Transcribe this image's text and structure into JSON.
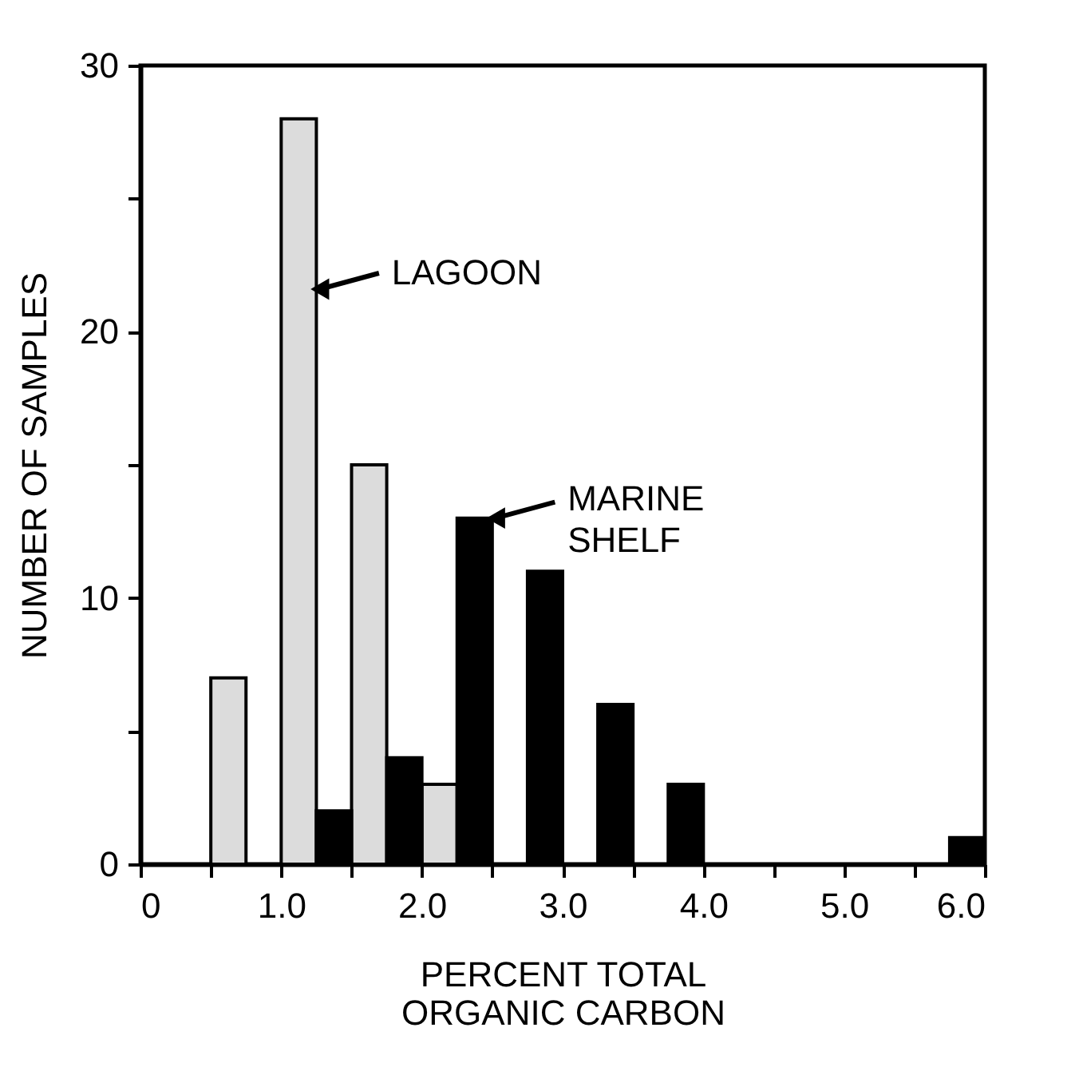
{
  "chart_data": {
    "type": "bar",
    "xlabel": "PERCENT TOTAL ORGANIC CARBON",
    "ylabel": "NUMBER OF SAMPLES",
    "series": [
      {
        "name": "LAGOON",
        "color": "#dcdcdc",
        "x": [
          0.625,
          1.125,
          1.625,
          2.125
        ],
        "values": [
          7,
          28,
          15,
          3
        ]
      },
      {
        "name": "MARINE SHELF",
        "color": "#000000",
        "x": [
          1.375,
          1.875,
          2.375,
          2.875,
          3.375,
          3.875,
          5.875
        ],
        "values": [
          2,
          4,
          13,
          11,
          6,
          3,
          1
        ]
      }
    ],
    "xlim": [
      0,
      6
    ],
    "xticks": [
      0,
      {
        "value": 0.5,
        "label": null
      },
      {
        "value": 1,
        "label": "1.0"
      },
      {
        "value": 1.5,
        "label": null
      },
      {
        "value": 2,
        "label": "2.0"
      },
      {
        "value": 2.5,
        "label": null
      },
      {
        "value": 3,
        "label": "3.0"
      },
      {
        "value": 3.5,
        "label": null
      },
      {
        "value": 4,
        "label": "4.0"
      },
      {
        "value": 4.5,
        "label": null
      },
      {
        "value": 5,
        "label": "5.0"
      },
      {
        "value": 5.5,
        "label": null
      },
      {
        "value": 6,
        "label": "6.0"
      }
    ],
    "ylim": [
      0,
      30
    ],
    "yticks": [
      0,
      {
        "value": 5,
        "label": null
      },
      10,
      {
        "value": 15,
        "label": null
      },
      20,
      {
        "value": 25,
        "label": null
      },
      30
    ],
    "legend": "top"
  }
}
